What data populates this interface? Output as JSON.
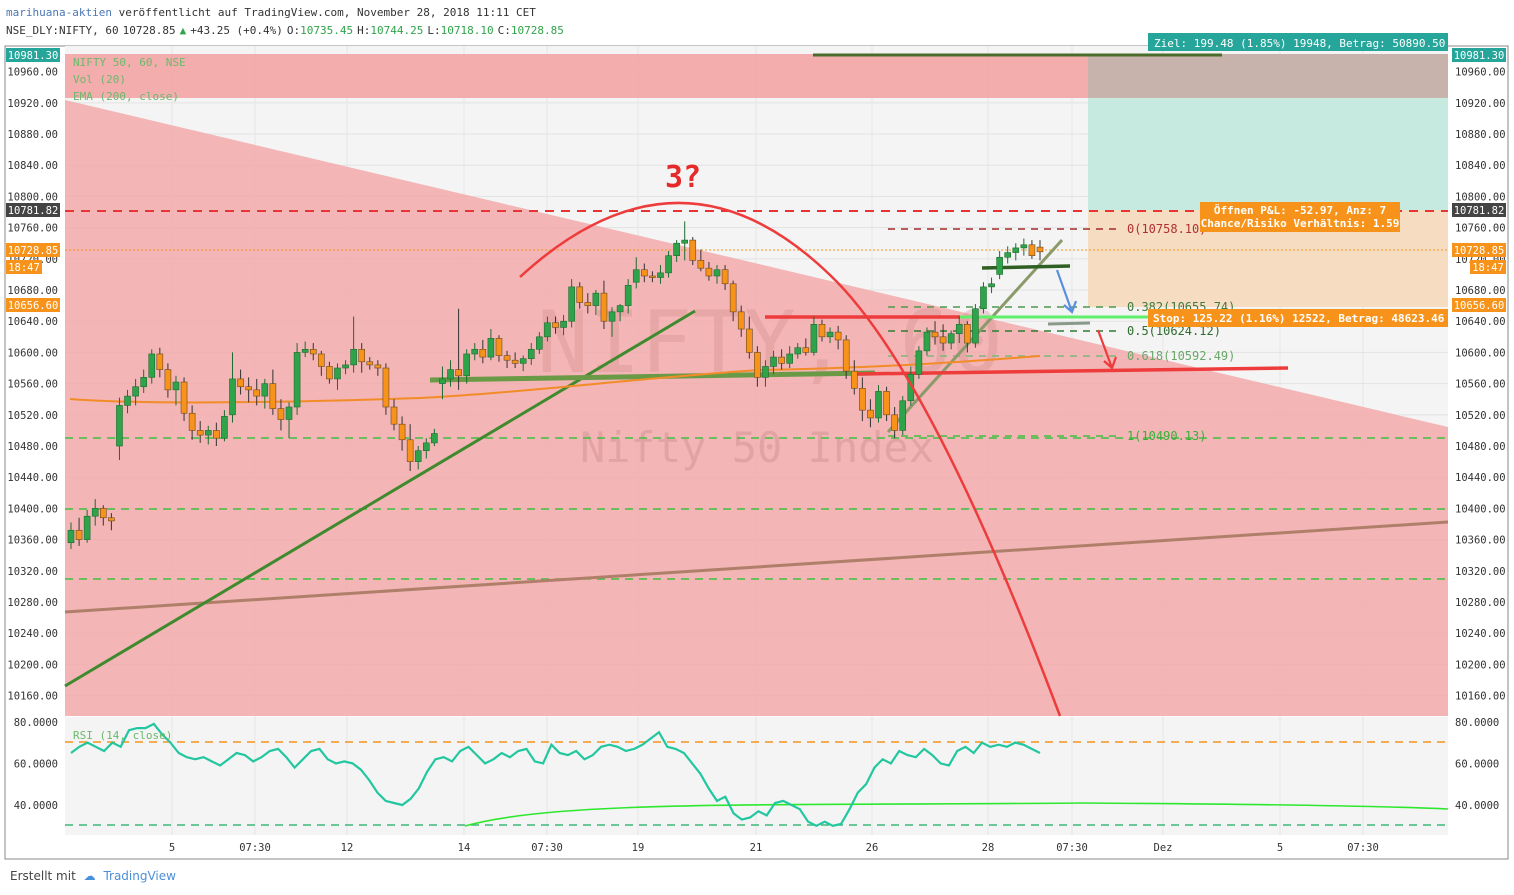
{
  "header": {
    "author": "marihuana-aktien",
    "published": "veröffentlicht auf TradingView.com, November 28, 2018 11:11 CET",
    "symbol": "NSE_DLY:NIFTY, 60",
    "last": "10728.85",
    "change": "+43.25 (+0.4%)",
    "o_label": "O:",
    "o": "10735.45",
    "h_label": "H:",
    "h": "10744.25",
    "l_label": "L:",
    "l": "10718.10",
    "c_label": "C:",
    "c": "10728.85"
  },
  "legend": {
    "line1": "NIFTY 50, 60, NSE",
    "line2": "Vol (20)",
    "line3": "EMA (200, close)",
    "rsi": "RSI (14, close)"
  },
  "watermark": {
    "symbol": "NIFTY, 60",
    "name": "Nifty 50 Index"
  },
  "annotations": {
    "question": "3?",
    "target": "Ziel: 199.48 (1.85%) 19948, Betrag: 50890.50",
    "pnl_line1": "Öffnen P&L: -52.97, Anz: 7",
    "pnl_line2": "Chance/Risiko Verhältnis: 1.59",
    "stop": "Stop: 125.22 (1.16%) 12522, Betrag: 48623.46",
    "fib_0": "0(10758.10)",
    "fib_382": "0.382(10655.74)",
    "fib_5": "0.5(10624.12)",
    "fib_618": "0.618(10592.49)",
    "fib_1": "1(10490.13)"
  },
  "price_tags": {
    "top": "10981.30",
    "entry": "10781.82",
    "last": "10728.85",
    "countdown": "18:47",
    "stop": "10656.60"
  },
  "colors": {
    "up": "#2fa34a",
    "down": "#f7931a",
    "resistance_zone": "#f2a9a9",
    "target_zone": "#c6e9e0",
    "risk_zone": "#f6dcc0",
    "ema": "#f28c28",
    "rsi": "#22c7a0",
    "dash_green": "#40c040",
    "curve_red": "#ee3b3b"
  },
  "footer": {
    "made_with": "Erstellt mit",
    "brand": "TradingView"
  },
  "chart_data": [
    {
      "type": "candlestick",
      "title": "NIFTY 50, 60, NSE",
      "x_ticks": [
        "5",
        "07:30",
        "12",
        "14",
        "07:30",
        "19",
        "21",
        "26",
        "28",
        "07:30",
        "Dez",
        "5",
        "07:30"
      ],
      "y_ticks": [
        "10960.00",
        "10920.00",
        "10880.00",
        "10840.00",
        "10800.00",
        "10760.00",
        "10720.00",
        "10680.00",
        "10640.00",
        "10600.00",
        "10560.00",
        "10520.00",
        "10480.00",
        "10440.00",
        "10400.00",
        "10360.00",
        "10320.00",
        "10280.00",
        "10240.00",
        "10200.00",
        "10160.00"
      ],
      "ylim": [
        10130,
        10995
      ],
      "candles": [
        [
          10356,
          10382,
          10348,
          10372
        ],
        [
          10372,
          10388,
          10352,
          10360
        ],
        [
          10360,
          10398,
          10356,
          10390
        ],
        [
          10390,
          10412,
          10378,
          10400
        ],
        [
          10400,
          10404,
          10378,
          10388
        ],
        [
          10388,
          10394,
          10372,
          10384
        ],
        [
          10480,
          10542,
          10462,
          10532
        ],
        [
          10532,
          10552,
          10522,
          10544
        ],
        [
          10544,
          10566,
          10532,
          10556
        ],
        [
          10556,
          10578,
          10548,
          10568
        ],
        [
          10568,
          10604,
          10560,
          10598
        ],
        [
          10598,
          10606,
          10568,
          10578
        ],
        [
          10578,
          10586,
          10542,
          10552
        ],
        [
          10552,
          10570,
          10532,
          10562
        ],
        [
          10562,
          10568,
          10512,
          10522
        ],
        [
          10522,
          10532,
          10488,
          10500
        ],
        [
          10500,
          10512,
          10484,
          10494
        ],
        [
          10494,
          10506,
          10482,
          10500
        ],
        [
          10500,
          10510,
          10480,
          10490
        ],
        [
          10490,
          10526,
          10486,
          10518
        ],
        [
          10520,
          10600,
          10510,
          10566
        ],
        [
          10566,
          10578,
          10546,
          10556
        ],
        [
          10556,
          10568,
          10536,
          10552
        ],
        [
          10552,
          10566,
          10532,
          10544
        ],
        [
          10544,
          10566,
          10528,
          10560
        ],
        [
          10560,
          10578,
          10520,
          10528
        ],
        [
          10528,
          10540,
          10500,
          10514
        ],
        [
          10514,
          10536,
          10490,
          10530
        ],
        [
          10530,
          10612,
          10520,
          10600
        ],
        [
          10600,
          10614,
          10594,
          10604
        ],
        [
          10604,
          10612,
          10590,
          10598
        ],
        [
          10598,
          10602,
          10570,
          10582
        ],
        [
          10582,
          10588,
          10560,
          10566
        ],
        [
          10566,
          10586,
          10552,
          10580
        ],
        [
          10580,
          10590,
          10572,
          10584
        ],
        [
          10584,
          10646,
          10574,
          10604
        ],
        [
          10604,
          10612,
          10574,
          10588
        ],
        [
          10588,
          10594,
          10578,
          10584
        ],
        [
          10584,
          10590,
          10570,
          10580
        ],
        [
          10580,
          10586,
          10520,
          10530
        ],
        [
          10530,
          10540,
          10500,
          10508
        ],
        [
          10508,
          10518,
          10474,
          10488
        ],
        [
          10488,
          10508,
          10448,
          10460
        ],
        [
          10460,
          10480,
          10450,
          10474
        ],
        [
          10474,
          10490,
          10464,
          10484
        ],
        [
          10484,
          10502,
          10480,
          10496
        ],
        [
          10560,
          10582,
          10540,
          10566
        ],
        [
          10566,
          10590,
          10556,
          10578
        ],
        [
          10578,
          10656,
          10552,
          10570
        ],
        [
          10570,
          10604,
          10560,
          10598
        ],
        [
          10598,
          10612,
          10590,
          10604
        ],
        [
          10604,
          10616,
          10586,
          10594
        ],
        [
          10594,
          10630,
          10590,
          10618
        ],
        [
          10618,
          10622,
          10588,
          10596
        ],
        [
          10596,
          10602,
          10580,
          10590
        ],
        [
          10590,
          10600,
          10580,
          10586
        ],
        [
          10586,
          10596,
          10576,
          10592
        ],
        [
          10592,
          10612,
          10584,
          10604
        ],
        [
          10604,
          10626,
          10598,
          10620
        ],
        [
          10620,
          10646,
          10614,
          10638
        ],
        [
          10638,
          10646,
          10624,
          10632
        ],
        [
          10632,
          10648,
          10622,
          10640
        ],
        [
          10640,
          10694,
          10632,
          10684
        ],
        [
          10684,
          10690,
          10656,
          10664
        ],
        [
          10664,
          10676,
          10650,
          10660
        ],
        [
          10660,
          10680,
          10648,
          10676
        ],
        [
          10676,
          10692,
          10630,
          10640
        ],
        [
          10640,
          10658,
          10620,
          10652
        ],
        [
          10652,
          10662,
          10640,
          10660
        ],
        [
          10660,
          10694,
          10650,
          10686
        ],
        [
          10690,
          10722,
          10682,
          10706
        ],
        [
          10706,
          10714,
          10690,
          10698
        ],
        [
          10698,
          10704,
          10690,
          10696
        ],
        [
          10696,
          10712,
          10688,
          10702
        ],
        [
          10702,
          10730,
          10696,
          10724
        ],
        [
          10724,
          10744,
          10716,
          10740
        ],
        [
          10740,
          10768,
          10718,
          10744
        ],
        [
          10744,
          10748,
          10712,
          10718
        ],
        [
          10718,
          10732,
          10704,
          10708
        ],
        [
          10708,
          10716,
          10692,
          10698
        ],
        [
          10698,
          10712,
          10688,
          10706
        ],
        [
          10706,
          10712,
          10680,
          10688
        ],
        [
          10688,
          10692,
          10640,
          10652
        ],
        [
          10652,
          10660,
          10620,
          10630
        ],
        [
          10630,
          10646,
          10592,
          10600
        ],
        [
          10600,
          10608,
          10556,
          10568
        ],
        [
          10568,
          10590,
          10556,
          10582
        ],
        [
          10582,
          10602,
          10572,
          10594
        ],
        [
          10594,
          10604,
          10578,
          10586
        ],
        [
          10586,
          10608,
          10580,
          10598
        ],
        [
          10598,
          10612,
          10592,
          10606
        ],
        [
          10606,
          10618,
          10596,
          10600
        ],
        [
          10600,
          10646,
          10596,
          10636
        ],
        [
          10636,
          10642,
          10614,
          10620
        ],
        [
          10620,
          10632,
          10612,
          10626
        ],
        [
          10626,
          10634,
          10604,
          10616
        ],
        [
          10616,
          10622,
          10566,
          10576
        ],
        [
          10576,
          10590,
          10546,
          10554
        ],
        [
          10554,
          10568,
          10512,
          10526
        ],
        [
          10526,
          10540,
          10504,
          10516
        ],
        [
          10516,
          10558,
          10510,
          10550
        ],
        [
          10550,
          10556,
          10512,
          10520
        ],
        [
          10520,
          10530,
          10490,
          10500
        ],
        [
          10500,
          10544,
          10494,
          10538
        ],
        [
          10538,
          10582,
          10532,
          10572
        ],
        [
          10572,
          10608,
          10566,
          10602
        ],
        [
          10602,
          10632,
          10596,
          10626
        ],
        [
          10626,
          10640,
          10610,
          10620
        ],
        [
          10620,
          10636,
          10602,
          10612
        ],
        [
          10612,
          10628,
          10604,
          10624
        ],
        [
          10624,
          10646,
          10612,
          10636
        ],
        [
          10636,
          10640,
          10600,
          10612
        ],
        [
          10612,
          10662,
          10606,
          10656
        ],
        [
          10656,
          10690,
          10650,
          10684
        ],
        [
          10684,
          10696,
          10676,
          10688
        ],
        [
          10700,
          10730,
          10694,
          10722
        ],
        [
          10722,
          10736,
          10714,
          10728
        ],
        [
          10728,
          10740,
          10718,
          10734
        ],
        [
          10734,
          10746,
          10724,
          10738
        ],
        [
          10738,
          10744,
          10720,
          10724
        ],
        [
          10735,
          10744,
          10718,
          10729
        ]
      ]
    },
    {
      "type": "line",
      "title": "RSI (14, close)",
      "y_ticks": [
        "80.0000",
        "60.0000",
        "40.0000"
      ],
      "ylim": [
        28,
        84
      ],
      "series": [
        {
          "values": [
            65,
            68,
            70,
            68,
            66,
            70,
            68,
            76,
            77,
            77,
            79,
            74,
            70,
            65,
            63,
            62,
            63,
            61,
            59,
            62,
            65,
            64,
            61,
            63,
            66,
            67,
            63,
            58,
            62,
            66,
            67,
            62,
            60,
            61,
            60,
            57,
            52,
            46,
            42,
            41,
            40,
            43,
            48,
            56,
            62,
            63,
            61,
            66,
            68,
            64,
            60,
            62,
            65,
            63,
            66,
            67,
            61,
            60,
            69,
            65,
            64,
            66,
            62,
            64,
            68,
            69,
            68,
            66,
            67,
            69,
            72,
            75,
            68,
            67,
            65,
            60,
            55,
            48,
            42,
            44,
            36,
            33,
            34,
            37,
            35,
            41,
            42,
            40,
            38,
            32,
            30,
            32,
            30,
            31,
            38,
            46,
            50,
            58,
            62,
            60,
            66,
            64,
            63,
            67,
            64,
            60,
            59,
            66,
            68,
            65,
            70,
            68,
            69,
            68,
            70,
            69,
            67,
            65
          ]
        }
      ]
    }
  ]
}
